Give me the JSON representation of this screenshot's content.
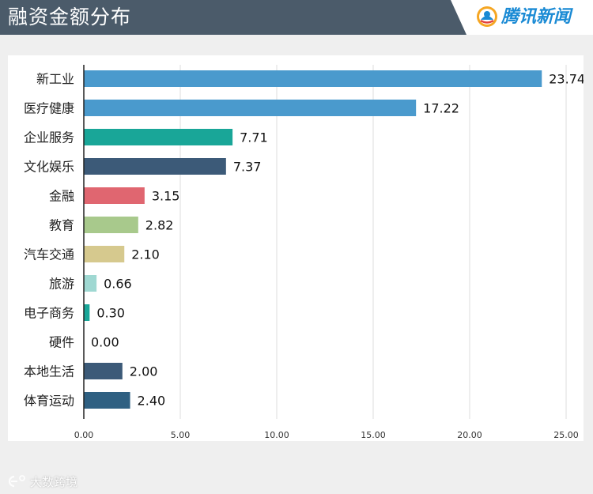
{
  "header": {
    "title": "融资金额分布"
  },
  "brand": {
    "name": "腾讯新闻"
  },
  "watermark": {
    "text": "大数跨境"
  },
  "chart_data": {
    "type": "bar",
    "orientation": "horizontal",
    "title": "融资金额分布",
    "categories": [
      "新工业",
      "医疗健康",
      "企业服务",
      "文化娱乐",
      "金融",
      "教育",
      "汽车交通",
      "旅游",
      "电子商务",
      "硬件",
      "本地生活",
      "体育运动"
    ],
    "values": [
      23.74,
      17.22,
      7.71,
      7.37,
      3.15,
      2.82,
      2.1,
      0.66,
      0.3,
      0.0,
      2.0,
      2.4
    ],
    "value_labels": [
      "23.74",
      "17.22",
      "7.71",
      "7.37",
      "3.15",
      "2.82",
      "2.10",
      "0.66",
      "0.30",
      "0.00",
      "2.00",
      "2.40"
    ],
    "colors": [
      "#4a9acd",
      "#4a9acd",
      "#19a698",
      "#3c5a78",
      "#e06670",
      "#a8c98c",
      "#d6c98e",
      "#9fd8d2",
      "#19a698",
      "#3c5a78",
      "#3c5a78",
      "#2f6082"
    ],
    "xlim": [
      0,
      25
    ],
    "xticks": [
      0,
      5,
      10,
      15,
      20,
      25
    ],
    "xtick_labels": [
      "0.00",
      "5.00",
      "10.00",
      "15.00",
      "20.00",
      "25.00"
    ],
    "grid": "vertical",
    "legend": "none"
  }
}
